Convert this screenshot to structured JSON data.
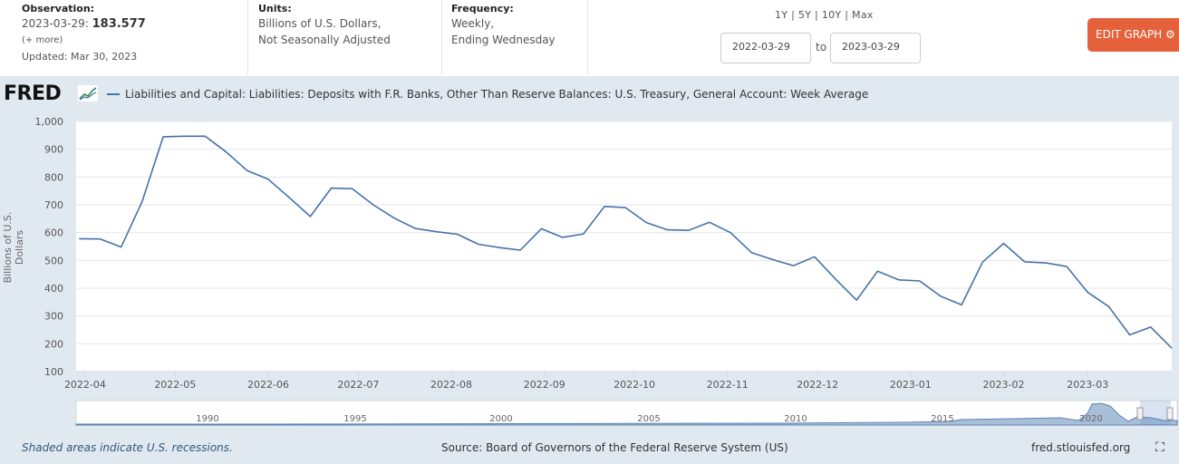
{
  "observation": {
    "heading": "Observation:",
    "date": "2023-03-29:",
    "value": "183.577",
    "more": "(+ more)",
    "updated": "Updated: Mar 30, 2023"
  },
  "units": {
    "heading": "Units:",
    "line1": "Billions of U.S. Dollars,",
    "line2": "Not Seasonally Adjusted"
  },
  "frequency": {
    "heading": "Frequency:",
    "line1": "Weekly,",
    "line2": "Ending Wednesday"
  },
  "controls": {
    "range_links": "1Y | 5Y | 10Y | Max",
    "date_from": "2022-03-29",
    "date_sep": "to",
    "date_to": "2023-03-29",
    "edit_button": "EDIT GRAPH",
    "gear_icon": "⚙"
  },
  "logo": "FRED",
  "legend_label": "Liabilities and Capital: Liabilities: Deposits with F.R. Banks, Other Than Reserve Balances: U.S. Treasury, General Account: Week Average",
  "footer": {
    "recession_note": "Shaded areas indicate U.S. recessions.",
    "source": "Source: Board of Governors of the Federal Reserve System (US)",
    "site": "fred.stlouisfed.org",
    "fullscreen_icon": "⛶"
  },
  "colors": {
    "series": "#4572a7",
    "panel_bg": "#e1e9f0",
    "edit_button": "#e5613c"
  },
  "chart_data": {
    "type": "line",
    "title": "Liabilities and Capital: Liabilities: Deposits with F.R. Banks, Other Than Reserve Balances: U.S. Treasury, General Account: Week Average",
    "xlabel": "",
    "ylabel": "Billions of U.S. Dollars",
    "ylim": [
      100,
      1000
    ],
    "yticks": [
      100,
      200,
      300,
      400,
      500,
      600,
      700,
      800,
      900,
      1000
    ],
    "ytick_labels": [
      "100",
      "200",
      "300",
      "400",
      "500",
      "600",
      "700",
      "800",
      "900",
      "1,000"
    ],
    "xlim": [
      "2022-03-29",
      "2023-03-29"
    ],
    "xtick_labels": [
      "2022-04",
      "2022-05",
      "2022-06",
      "2022-07",
      "2022-08",
      "2022-09",
      "2022-10",
      "2022-11",
      "2022-12",
      "2023-01",
      "2023-02",
      "2023-03"
    ],
    "grid": true,
    "series": [
      {
        "name": "Liabilities and Capital: Liabilities: Deposits with F.R. Banks, Other Than Reserve Balances: U.S. Treasury, General Account: Week Average",
        "x": [
          "2022-03-30",
          "2022-04-06",
          "2022-04-13",
          "2022-04-20",
          "2022-04-27",
          "2022-05-04",
          "2022-05-11",
          "2022-05-18",
          "2022-05-25",
          "2022-06-01",
          "2022-06-08",
          "2022-06-15",
          "2022-06-22",
          "2022-06-29",
          "2022-07-06",
          "2022-07-13",
          "2022-07-20",
          "2022-07-27",
          "2022-08-03",
          "2022-08-10",
          "2022-08-17",
          "2022-08-24",
          "2022-08-31",
          "2022-09-07",
          "2022-09-14",
          "2022-09-21",
          "2022-09-28",
          "2022-10-05",
          "2022-10-12",
          "2022-10-19",
          "2022-10-26",
          "2022-11-02",
          "2022-11-09",
          "2022-11-16",
          "2022-11-23",
          "2022-11-30",
          "2022-12-07",
          "2022-12-14",
          "2022-12-21",
          "2022-12-28",
          "2023-01-04",
          "2023-01-11",
          "2023-01-18",
          "2023-01-25",
          "2023-02-01",
          "2023-02-08",
          "2023-02-15",
          "2023-02-22",
          "2023-03-01",
          "2023-03-08",
          "2023-03-15",
          "2023-03-22",
          "2023-03-29"
        ],
        "values": [
          578,
          577,
          548,
          712,
          945,
          947,
          947,
          890,
          823,
          792,
          726,
          658,
          760,
          758,
          700,
          652,
          615,
          603,
          594,
          558,
          546,
          537,
          614,
          583,
          595,
          694,
          690,
          636,
          610,
          608,
          637,
          600,
          528,
          503,
          481,
          513,
          433,
          357,
          461,
          430,
          426,
          371,
          340,
          494,
          561,
          495,
          491,
          478,
          385,
          334,
          232,
          260,
          184
        ]
      }
    ]
  },
  "navigator": {
    "year_labels": [
      "1990",
      "1995",
      "2000",
      "2005",
      "2010",
      "2015",
      "2020"
    ]
  }
}
